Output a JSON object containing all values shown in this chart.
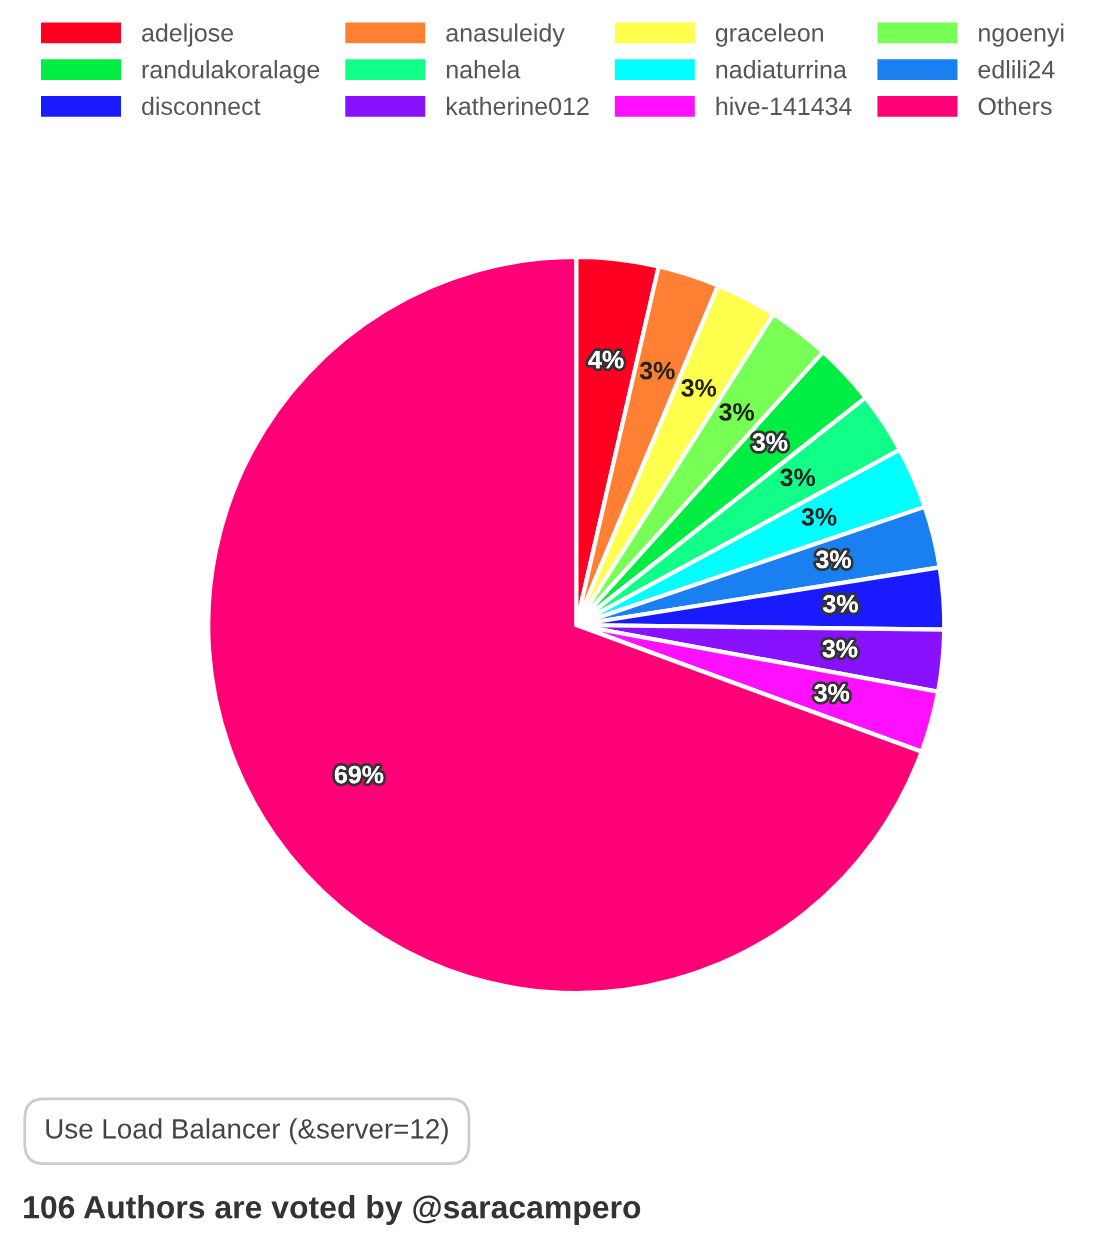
{
  "chart_data": {
    "type": "pie",
    "categories": [
      "adeljose",
      "anasuleidy",
      "graceleon",
      "ngoenyi",
      "randulakoralage",
      "nahela",
      "nadiaturrina",
      "edlili24",
      "disconnect",
      "katherine012",
      "hive-141434",
      "Others"
    ],
    "values": [
      3.6,
      2.7,
      2.7,
      2.7,
      2.7,
      2.7,
      2.7,
      2.7,
      2.7,
      2.7,
      2.7,
      69.4
    ],
    "value_labels": [
      "4%",
      "3%",
      "3%",
      "3%",
      "3%",
      "3%",
      "3%",
      "3%",
      "3%",
      "3%",
      "3%",
      "69%"
    ],
    "colors": [
      "#ff0022",
      "#ff8033",
      "#ffff4d",
      "#77ff55",
      "#00ee44",
      "#11ff88",
      "#00ffff",
      "#1a7ff0",
      "#1a1aff",
      "#8811ff",
      "#ff11ff",
      "#ff0077"
    ],
    "legend": "top",
    "annotations": [
      "Use Load Balancer (&server=12)",
      "106 Authors are voted by @saracampero"
    ]
  }
}
